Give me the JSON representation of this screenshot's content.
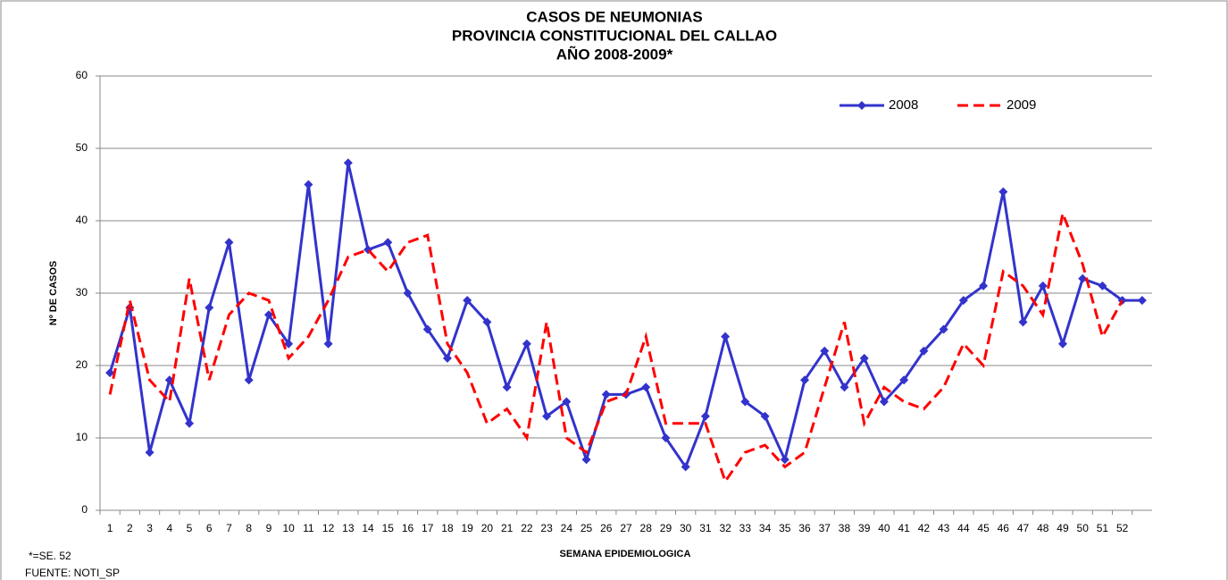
{
  "chart_data": {
    "type": "line",
    "title": [
      "CASOS DE NEUMONIAS",
      "PROVINCIA CONSTITUCIONAL DEL CALLAO",
      "AÑO 2008-2009*"
    ],
    "y_label": "Nº DE CASOS",
    "x_label": "SEMANA EPIDEMIOLOGICA",
    "footnotes": [
      "*=SE. 52",
      "FUENTE: NOTI_SP"
    ],
    "categories": [
      "1",
      "2",
      "3",
      "4",
      "5",
      "6",
      "7",
      "8",
      "9",
      "10",
      "11",
      "12",
      "13",
      "14",
      "15",
      "16",
      "17",
      "18",
      "19",
      "20",
      "21",
      "22",
      "23",
      "24",
      "25",
      "26",
      "27",
      "28",
      "29",
      "30",
      "31",
      "32",
      "33",
      "34",
      "35",
      "36",
      "37",
      "38",
      "39",
      "40",
      "41",
      "42",
      "43",
      "44",
      "45",
      "46",
      "47",
      "48",
      "49",
      "50",
      "51",
      "52",
      null
    ],
    "series": [
      {
        "name": "2008",
        "color": "#3333cc",
        "style": "solid",
        "marker": "diamond",
        "values": [
          19,
          28,
          8,
          18,
          12,
          28,
          37,
          18,
          27,
          23,
          45,
          23,
          48,
          36,
          37,
          30,
          25,
          21,
          29,
          26,
          17,
          23,
          13,
          15,
          7,
          16,
          16,
          17,
          10,
          6,
          13,
          24,
          15,
          13,
          7,
          18,
          22,
          17,
          21,
          15,
          18,
          22,
          25,
          29,
          31,
          44,
          26,
          31,
          23,
          32,
          31,
          29,
          29
        ]
      },
      {
        "name": "2009",
        "color": "#ff0000",
        "style": "dashed",
        "marker": "none",
        "values": [
          16,
          29,
          18,
          15,
          32,
          18,
          27,
          30,
          29,
          21,
          24,
          29,
          35,
          36,
          33,
          37,
          38,
          23,
          19,
          12,
          14,
          10,
          26,
          10,
          8,
          15,
          16,
          24,
          12,
          12,
          12,
          4,
          8,
          9,
          6,
          8,
          17,
          26,
          12,
          17,
          15,
          14,
          17,
          23,
          20,
          33,
          31,
          27,
          41,
          34,
          24,
          29,
          null
        ]
      }
    ],
    "ylim": [
      0,
      60
    ],
    "yticks": [
      0,
      10,
      20,
      30,
      40,
      50,
      60
    ],
    "grid": true,
    "legend": "top-right"
  }
}
